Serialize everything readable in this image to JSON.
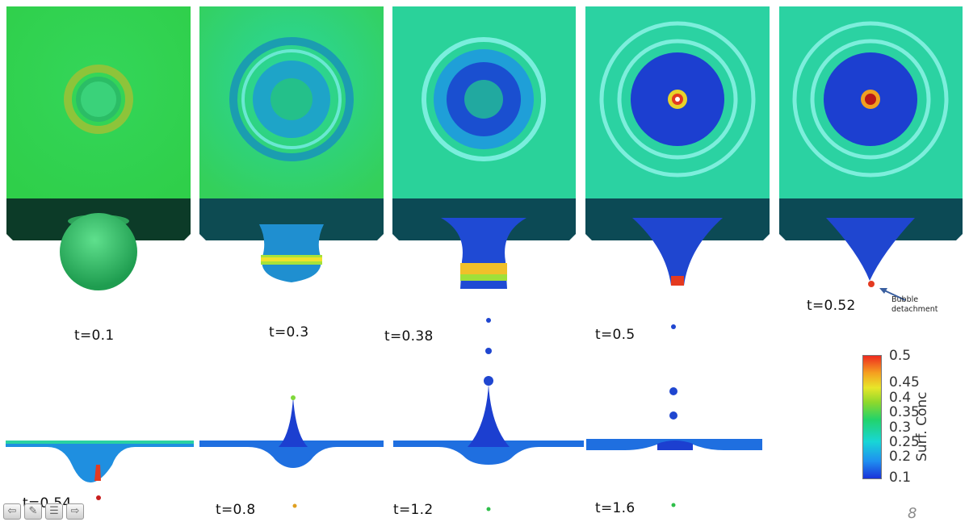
{
  "panels_top": [
    {
      "time_label": "t=0.1",
      "state": "attached"
    },
    {
      "time_label": "t=0.3",
      "state": "necking"
    },
    {
      "time_label": "t=0.38",
      "state": "necking"
    },
    {
      "time_label": "t=0.5",
      "state": "cone"
    },
    {
      "time_label": "t=0.52",
      "state": "detachment"
    }
  ],
  "panels_bottom": [
    {
      "time_label": "t=0.54"
    },
    {
      "time_label": "t=0.8"
    },
    {
      "time_label": "t=1.2"
    },
    {
      "time_label": "t=1.6"
    }
  ],
  "annotation": {
    "line1": "Bubble",
    "line2": "detachment"
  },
  "colorbar": {
    "title": "Surf. Conc",
    "ticks": [
      "0.5",
      "0.45",
      "0.4",
      "0.35",
      "0.3",
      "0.25",
      "0.2",
      "0.1"
    ],
    "min": 0.1,
    "max": 0.5,
    "colors": [
      "#1a33d9",
      "#1f8ff0",
      "#18d6d6",
      "#22d36a",
      "#8ed82c",
      "#e8e629",
      "#f5a020",
      "#ee2a1f"
    ]
  },
  "page_number": "8",
  "nav_icons": [
    "back-arrow-icon",
    "pen-icon",
    "menu-icon",
    "forward-arrow-icon"
  ]
}
